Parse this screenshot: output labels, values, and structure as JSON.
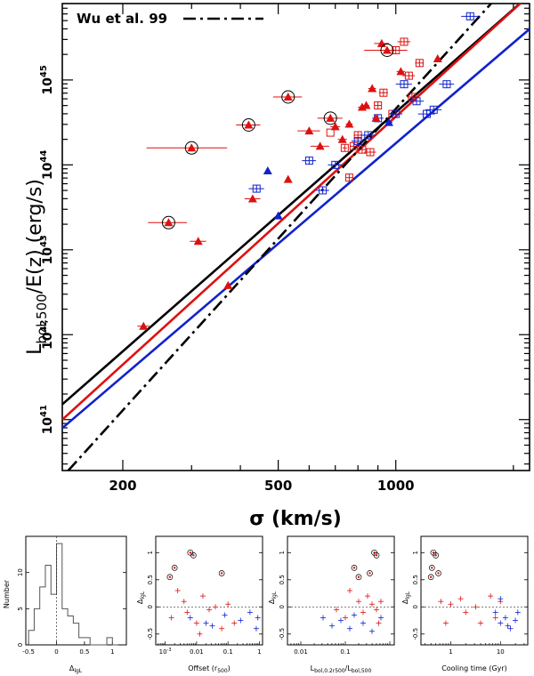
{
  "chart_data": [
    {
      "type": "scatter",
      "id": "main",
      "legend": "Wu et al. 99",
      "legend_position": "top-left",
      "xlabel": "σ (km/s)",
      "ylabel_main": "L",
      "ylabel_sub": "bol,500",
      "ylabel_tail": "/E(z)  (erg/s)",
      "xscale": "log",
      "yscale": "log",
      "xlim": [
        140,
        2200
      ],
      "ylim_log": [
        40.4,
        45.9
      ],
      "xticks": [
        {
          "v": 200,
          "label": "200"
        },
        {
          "v": 500,
          "label": "500"
        },
        {
          "v": 1000,
          "label": "1000"
        }
      ],
      "yticks": [
        {
          "v": 41,
          "base": "10",
          "exp": "41"
        },
        {
          "v": 42,
          "base": "10",
          "exp": "42"
        },
        {
          "v": 43,
          "base": "10",
          "exp": "43"
        },
        {
          "v": 44,
          "base": "10",
          "exp": "44"
        },
        {
          "v": 45,
          "base": "10",
          "exp": "45"
        }
      ],
      "fit_lines": [
        {
          "name": "all-fit",
          "color": "#000000",
          "style": "solid",
          "x": [
            140,
            2200
          ],
          "logy": [
            41.18,
            46.0
          ]
        },
        {
          "name": "red-fit",
          "color": "#dd1111",
          "style": "solid",
          "x": [
            140,
            2200
          ],
          "logy": [
            41.0,
            46.0
          ]
        },
        {
          "name": "blue-fit",
          "color": "#1122cc",
          "style": "solid",
          "x": [
            140,
            2200
          ],
          "logy": [
            40.9,
            45.6
          ]
        },
        {
          "name": "wu99",
          "color": "#000000",
          "style": "dashdot",
          "x": [
            145,
            2200
          ],
          "logy": [
            40.4,
            46.4
          ]
        }
      ],
      "red_triangles": [
        {
          "x": 226,
          "logy": 42.1,
          "xe": 8,
          "circled": false
        },
        {
          "x": 262,
          "logy": 43.32,
          "xe": 30,
          "circled": true
        },
        {
          "x": 312,
          "logy": 43.1,
          "xe": 15,
          "circled": false
        },
        {
          "x": 300,
          "logy": 44.2,
          "xe": 70,
          "circled": true
        },
        {
          "x": 372,
          "logy": 42.58,
          "xe": 0,
          "circled": false
        },
        {
          "x": 420,
          "logy": 44.47,
          "xe": 30,
          "circled": true
        },
        {
          "x": 430,
          "logy": 43.6,
          "xe": 20,
          "circled": false
        },
        {
          "x": 530,
          "logy": 44.8,
          "xe": 45,
          "circled": true
        },
        {
          "x": 530,
          "logy": 43.83,
          "xe": 0,
          "circled": false
        },
        {
          "x": 600,
          "logy": 44.4,
          "xe": 40,
          "circled": false
        },
        {
          "x": 640,
          "logy": 44.22,
          "xe": 35,
          "circled": false
        },
        {
          "x": 680,
          "logy": 44.55,
          "xe": 50,
          "circled": true
        },
        {
          "x": 700,
          "logy": 44.45,
          "xe": 20,
          "circled": false
        },
        {
          "x": 730,
          "logy": 44.3,
          "xe": 20,
          "circled": false
        },
        {
          "x": 760,
          "logy": 44.48,
          "xe": 15,
          "circled": false
        },
        {
          "x": 820,
          "logy": 44.68,
          "xe": 20,
          "circled": false
        },
        {
          "x": 840,
          "logy": 44.7,
          "xe": 15,
          "circled": false
        },
        {
          "x": 870,
          "logy": 44.9,
          "xe": 20,
          "circled": false
        },
        {
          "x": 890,
          "logy": 44.55,
          "xe": 15,
          "circled": false
        },
        {
          "x": 920,
          "logy": 45.43,
          "xe": 40,
          "circled": false
        },
        {
          "x": 950,
          "logy": 45.35,
          "xe": 120,
          "circled": true
        },
        {
          "x": 1030,
          "logy": 45.1,
          "xe": 25,
          "circled": false
        },
        {
          "x": 1280,
          "logy": 45.25,
          "xe": 20,
          "circled": false
        }
      ],
      "blue_triangles": [
        {
          "x": 470,
          "logy": 43.93,
          "xe": 0
        },
        {
          "x": 500,
          "logy": 43.4,
          "xe": 0
        },
        {
          "x": 960,
          "logy": 44.5,
          "xe": 20
        }
      ],
      "red_squares": [
        {
          "x": 680,
          "logy": 44.38,
          "xe": 0
        },
        {
          "x": 740,
          "logy": 44.2,
          "xe": 10
        },
        {
          "x": 760,
          "logy": 43.85,
          "xe": 15
        },
        {
          "x": 780,
          "logy": 44.22,
          "xe": 15
        },
        {
          "x": 800,
          "logy": 44.35,
          "xe": 20
        },
        {
          "x": 820,
          "logy": 44.18,
          "xe": 20
        },
        {
          "x": 860,
          "logy": 44.15,
          "xe": 30
        },
        {
          "x": 900,
          "logy": 44.7,
          "xe": 20
        },
        {
          "x": 930,
          "logy": 44.85,
          "xe": 25
        },
        {
          "x": 980,
          "logy": 44.6,
          "xe": 20
        },
        {
          "x": 1000,
          "logy": 45.35,
          "xe": 30
        },
        {
          "x": 1050,
          "logy": 45.45,
          "xe": 40
        },
        {
          "x": 1080,
          "logy": 45.05,
          "xe": 40
        },
        {
          "x": 1100,
          "logy": 44.8,
          "xe": 30
        },
        {
          "x": 1150,
          "logy": 45.2,
          "xe": 30
        }
      ],
      "blue_squares": [
        {
          "x": 440,
          "logy": 43.72,
          "xe": 20
        },
        {
          "x": 600,
          "logy": 44.05,
          "xe": 25
        },
        {
          "x": 650,
          "logy": 43.7,
          "xe": 25
        },
        {
          "x": 700,
          "logy": 44.0,
          "xe": 30
        },
        {
          "x": 800,
          "logy": 44.28,
          "xe": 30
        },
        {
          "x": 850,
          "logy": 44.35,
          "xe": 40
        },
        {
          "x": 900,
          "logy": 44.55,
          "xe": 30
        },
        {
          "x": 1000,
          "logy": 44.6,
          "xe": 40
        },
        {
          "x": 1050,
          "logy": 44.95,
          "xe": 50
        },
        {
          "x": 1130,
          "logy": 44.75,
          "xe": 50
        },
        {
          "x": 1200,
          "logy": 44.6,
          "xe": 60
        },
        {
          "x": 1250,
          "logy": 44.65,
          "xe": 60
        },
        {
          "x": 1350,
          "logy": 44.95,
          "xe": 60
        },
        {
          "x": 1550,
          "logy": 45.75,
          "xe": 80
        }
      ]
    },
    {
      "type": "histogram",
      "id": "hist",
      "xlabel": "Δ",
      "xlabel_sub": "lgL",
      "ylabel": "Number",
      "xlim": [
        -0.55,
        1.25
      ],
      "ylim": [
        0,
        15
      ],
      "xticks": [
        {
          "v": -0.5,
          "label": "-0.5"
        },
        {
          "v": 0,
          "label": "0"
        },
        {
          "v": 0.5,
          "label": "0.5"
        },
        {
          "v": 1,
          "label": "1"
        }
      ],
      "yticks": [
        {
          "v": 0,
          "label": "0"
        },
        {
          "v": 5,
          "label": "5"
        },
        {
          "v": 10,
          "label": "10"
        }
      ],
      "bins": [
        -0.5,
        -0.4,
        -0.3,
        -0.2,
        -0.1,
        0,
        0.1,
        0.2,
        0.3,
        0.4,
        0.5,
        0.6,
        0.7,
        0.8,
        0.9,
        1.0,
        1.1
      ],
      "counts": [
        2,
        5,
        8,
        11,
        7,
        14,
        5,
        4,
        3,
        1,
        1,
        0,
        0,
        0,
        1,
        0
      ]
    },
    {
      "type": "scatter",
      "id": "offset",
      "xlabel": "Offset (r",
      "xlabel_sub": "500",
      "xlabel_tail": ")",
      "ylabel": "Δ",
      "ylabel_sub": "lgL",
      "xscale": "log",
      "xlim_log": [
        -3.3,
        0.1
      ],
      "ylim": [
        -0.7,
        1.3
      ],
      "xticks": [
        {
          "v": -3,
          "base": "10",
          "exp": "-3"
        },
        {
          "v": -2,
          "label": "0.01"
        },
        {
          "v": -1,
          "label": "0.1"
        },
        {
          "v": 0,
          "label": "1"
        }
      ],
      "yticks": [
        {
          "v": -0.5,
          "label": "-0.5"
        },
        {
          "v": 0,
          "label": "0"
        },
        {
          "v": 0.5,
          "label": "0.5"
        },
        {
          "v": 1,
          "label": "1"
        }
      ],
      "circled": [
        [
          -2.2,
          1.0
        ],
        [
          -2.1,
          0.95
        ],
        [
          -2.85,
          0.55
        ],
        [
          -2.7,
          0.72
        ],
        [
          -1.2,
          0.62
        ]
      ],
      "red_points": [
        [
          -2.6,
          0.3
        ],
        [
          -2.4,
          0.1
        ],
        [
          -2.3,
          -0.1
        ],
        [
          -2.0,
          -0.3
        ],
        [
          -1.8,
          0.2
        ],
        [
          -1.6,
          -0.05
        ],
        [
          -1.4,
          0.0
        ],
        [
          -1.2,
          -0.4
        ],
        [
          -1.0,
          0.05
        ],
        [
          -0.8,
          -0.3
        ],
        [
          -2.8,
          -0.2
        ],
        [
          -1.9,
          -0.5
        ]
      ],
      "blue_points": [
        [
          -2.2,
          -0.2
        ],
        [
          -1.5,
          -0.35
        ],
        [
          -1.1,
          -0.15
        ],
        [
          -0.6,
          -0.25
        ],
        [
          -0.3,
          -0.1
        ],
        [
          -0.1,
          -0.4
        ],
        [
          -0.05,
          -0.2
        ],
        [
          -1.7,
          -0.3
        ]
      ]
    },
    {
      "type": "scatter",
      "id": "lumratio",
      "xlabel": "L",
      "xlabel_sub": "bol,0.2r500",
      "xlabel_tail": "/L",
      "xlabel_sub2": "bol,500",
      "ylabel": "Δ",
      "ylabel_sub": "lgL",
      "xscale": "log",
      "xlim_log": [
        -2.3,
        0.1
      ],
      "ylim": [
        -0.7,
        1.3
      ],
      "xticks": [
        {
          "v": -2,
          "label": "0.01"
        },
        {
          "v": -1,
          "label": "0.1"
        }
      ],
      "yticks": [
        {
          "v": -0.5,
          "label": "-0.5"
        },
        {
          "v": 0,
          "label": "0"
        },
        {
          "v": 0.5,
          "label": "0.5"
        },
        {
          "v": 1,
          "label": "1"
        }
      ],
      "circled": [
        [
          -0.35,
          1.0
        ],
        [
          -0.3,
          0.95
        ],
        [
          -0.7,
          0.55
        ],
        [
          -0.8,
          0.72
        ],
        [
          -0.45,
          0.62
        ]
      ],
      "red_points": [
        [
          -0.9,
          0.3
        ],
        [
          -0.7,
          0.1
        ],
        [
          -0.6,
          -0.1
        ],
        [
          -0.5,
          0.2
        ],
        [
          -0.4,
          0.05
        ],
        [
          -0.3,
          -0.05
        ],
        [
          -0.25,
          -0.3
        ],
        [
          -0.2,
          0.1
        ],
        [
          -1.0,
          -0.2
        ],
        [
          -1.2,
          -0.05
        ]
      ],
      "blue_points": [
        [
          -1.5,
          -0.2
        ],
        [
          -1.3,
          -0.35
        ],
        [
          -1.1,
          -0.25
        ],
        [
          -0.9,
          -0.4
        ],
        [
          -0.8,
          -0.15
        ],
        [
          -0.6,
          -0.3
        ],
        [
          -0.4,
          -0.45
        ],
        [
          -0.2,
          -0.2
        ]
      ]
    },
    {
      "type": "scatter",
      "id": "cooling",
      "xlabel": "Cooling time (Gyr)",
      "ylabel": "Δ",
      "ylabel_sub": "lgL",
      "xscale": "log",
      "xlim_log": [
        -0.6,
        1.55
      ],
      "ylim": [
        -0.7,
        1.3
      ],
      "xticks": [
        {
          "v": 0,
          "label": "1"
        },
        {
          "v": 1,
          "label": "10"
        }
      ],
      "yticks": [
        {
          "v": -0.5,
          "label": "-0.5"
        },
        {
          "v": 0,
          "label": "0"
        },
        {
          "v": 0.5,
          "label": "0.5"
        },
        {
          "v": 1,
          "label": "1"
        }
      ],
      "circled": [
        [
          -0.35,
          1.0
        ],
        [
          -0.3,
          0.95
        ],
        [
          -0.4,
          0.55
        ],
        [
          -0.38,
          0.72
        ],
        [
          -0.25,
          0.62
        ]
      ],
      "red_points": [
        [
          -0.2,
          0.1
        ],
        [
          0.0,
          0.05
        ],
        [
          0.2,
          0.15
        ],
        [
          0.3,
          -0.1
        ],
        [
          0.5,
          0.0
        ],
        [
          0.6,
          -0.3
        ],
        [
          0.8,
          0.2
        ],
        [
          0.9,
          -0.2
        ],
        [
          1.0,
          0.1
        ],
        [
          -0.1,
          -0.3
        ]
      ],
      "blue_points": [
        [
          0.9,
          -0.1
        ],
        [
          1.0,
          -0.3
        ],
        [
          1.1,
          -0.2
        ],
        [
          1.2,
          -0.4
        ],
        [
          1.3,
          -0.25
        ],
        [
          1.35,
          -0.1
        ],
        [
          1.0,
          0.15
        ],
        [
          1.15,
          -0.35
        ]
      ]
    }
  ]
}
